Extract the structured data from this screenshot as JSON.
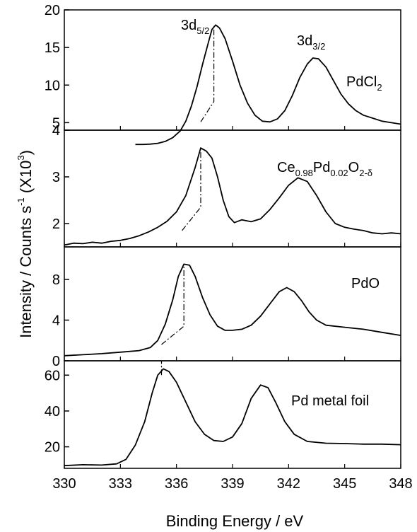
{
  "chart_data": {
    "type": "line",
    "xlabel": "Binding Energy / eV",
    "ylabel": "Intensity / Counts s-1 (X10^3)",
    "ylabel_parts": {
      "main": "Intensity / Counts s",
      "exp1": "-1",
      "paren_open": " (X10",
      "exp2": "3",
      "paren_close": ")"
    },
    "xlim": [
      330,
      348
    ],
    "x_reversed": false,
    "xticks": [
      "330",
      "333",
      "336",
      "339",
      "342",
      "345",
      "348"
    ],
    "peak_labels": {
      "d52": {
        "base": "3d",
        "sub": "5/2"
      },
      "d32": {
        "base": "3d",
        "sub": "3/2"
      }
    },
    "panels": [
      {
        "id": "pdcl2",
        "label_parts": [
          {
            "t": "PdCl",
            "sub": false
          },
          {
            "t": "2",
            "sub": true
          }
        ],
        "ylim": [
          4,
          20
        ],
        "yticks": [
          "4",
          "5",
          "10",
          "15",
          "20"
        ],
        "ytick_values": [
          4,
          5,
          10,
          15,
          20
        ],
        "points": [
          [
            333.8,
            2.1
          ],
          [
            334.2,
            2.1
          ],
          [
            334.6,
            2.15
          ],
          [
            335.0,
            2.25
          ],
          [
            335.4,
            2.5
          ],
          [
            335.8,
            3.0
          ],
          [
            336.2,
            3.9
          ],
          [
            336.5,
            5.2
          ],
          [
            336.8,
            7.2
          ],
          [
            337.1,
            9.8
          ],
          [
            337.4,
            12.8
          ],
          [
            337.7,
            15.6
          ],
          [
            337.9,
            17.4
          ],
          [
            338.1,
            18.0
          ],
          [
            338.3,
            17.6
          ],
          [
            338.6,
            16.2
          ],
          [
            339.0,
            13.2
          ],
          [
            339.4,
            10.0
          ],
          [
            339.8,
            7.6
          ],
          [
            340.2,
            6.0
          ],
          [
            340.6,
            5.2
          ],
          [
            341.0,
            5.1
          ],
          [
            341.4,
            5.5
          ],
          [
            341.8,
            6.6
          ],
          [
            342.2,
            8.6
          ],
          [
            342.6,
            11.0
          ],
          [
            343.0,
            12.8
          ],
          [
            343.3,
            13.6
          ],
          [
            343.6,
            13.5
          ],
          [
            344.0,
            12.4
          ],
          [
            344.4,
            10.6
          ],
          [
            344.8,
            8.8
          ],
          [
            345.2,
            7.5
          ],
          [
            345.6,
            6.6
          ],
          [
            346.0,
            6.0
          ],
          [
            346.5,
            5.6
          ],
          [
            347.0,
            5.2
          ],
          [
            347.5,
            5.0
          ],
          [
            348.0,
            4.8
          ]
        ],
        "dashdot": [
          [
            337.3,
            5.1
          ],
          [
            338.0,
            7.8
          ],
          [
            338.0,
            18.0
          ]
        ]
      },
      {
        "id": "ceo2",
        "label_parts": [
          {
            "t": "Ce",
            "sub": false
          },
          {
            "t": "0.98",
            "sub": true
          },
          {
            "t": "Pd",
            "sub": false
          },
          {
            "t": "0.02",
            "sub": true
          },
          {
            "t": "O",
            "sub": false
          },
          {
            "t": "2-δ",
            "sub": true
          }
        ],
        "ylim": [
          1.5,
          4.0
        ],
        "yticks": [
          "2",
          "3",
          "4"
        ],
        "ytick_values": [
          2,
          3,
          4
        ],
        "points": [
          [
            330.0,
            1.54
          ],
          [
            330.5,
            1.58
          ],
          [
            331.0,
            1.57
          ],
          [
            331.5,
            1.6
          ],
          [
            332.0,
            1.58
          ],
          [
            332.5,
            1.62
          ],
          [
            333.0,
            1.64
          ],
          [
            333.5,
            1.68
          ],
          [
            334.0,
            1.74
          ],
          [
            334.5,
            1.82
          ],
          [
            335.0,
            1.92
          ],
          [
            335.5,
            2.05
          ],
          [
            336.0,
            2.25
          ],
          [
            336.5,
            2.6
          ],
          [
            337.0,
            3.2
          ],
          [
            337.3,
            3.62
          ],
          [
            337.6,
            3.55
          ],
          [
            337.9,
            3.4
          ],
          [
            338.2,
            3.0
          ],
          [
            338.5,
            2.5
          ],
          [
            338.8,
            2.15
          ],
          [
            339.1,
            2.02
          ],
          [
            339.5,
            2.08
          ],
          [
            340.0,
            2.04
          ],
          [
            340.5,
            2.1
          ],
          [
            341.0,
            2.3
          ],
          [
            341.5,
            2.55
          ],
          [
            342.0,
            2.82
          ],
          [
            342.5,
            2.98
          ],
          [
            343.0,
            2.9
          ],
          [
            343.5,
            2.6
          ],
          [
            344.0,
            2.25
          ],
          [
            344.5,
            2.0
          ],
          [
            345.0,
            1.92
          ],
          [
            345.5,
            1.88
          ],
          [
            346.0,
            1.85
          ],
          [
            346.5,
            1.8
          ],
          [
            347.0,
            1.78
          ],
          [
            347.5,
            1.8
          ],
          [
            348.0,
            1.78
          ]
        ],
        "dashdot": [
          [
            336.3,
            1.85
          ],
          [
            337.3,
            2.35
          ],
          [
            337.3,
            3.62
          ]
        ]
      },
      {
        "id": "pdo",
        "label_parts": [
          {
            "t": "PdO",
            "sub": false
          }
        ],
        "ylim": [
          0,
          11.2
        ],
        "yticks": [
          "0",
          "4",
          "8"
        ],
        "ytick_values": [
          0,
          4,
          8
        ],
        "points": [
          [
            330.0,
            0.5
          ],
          [
            331.0,
            0.6
          ],
          [
            332.0,
            0.7
          ],
          [
            333.0,
            0.85
          ],
          [
            334.0,
            1.0
          ],
          [
            334.6,
            1.3
          ],
          [
            335.0,
            2.0
          ],
          [
            335.4,
            3.6
          ],
          [
            335.8,
            6.0
          ],
          [
            336.1,
            8.3
          ],
          [
            336.4,
            9.5
          ],
          [
            336.7,
            9.4
          ],
          [
            337.0,
            8.3
          ],
          [
            337.4,
            6.2
          ],
          [
            337.8,
            4.5
          ],
          [
            338.2,
            3.4
          ],
          [
            338.6,
            3.0
          ],
          [
            339.0,
            3.0
          ],
          [
            339.5,
            3.1
          ],
          [
            340.0,
            3.5
          ],
          [
            340.5,
            4.4
          ],
          [
            341.0,
            5.6
          ],
          [
            341.5,
            6.8
          ],
          [
            341.9,
            7.2
          ],
          [
            342.3,
            6.8
          ],
          [
            342.7,
            5.9
          ],
          [
            343.1,
            4.8
          ],
          [
            343.5,
            4.0
          ],
          [
            344.0,
            3.5
          ],
          [
            345.0,
            3.3
          ],
          [
            346.0,
            3.1
          ],
          [
            347.0,
            2.8
          ],
          [
            348.0,
            2.5
          ]
        ],
        "dashdot": [
          [
            335.2,
            1.6
          ],
          [
            336.4,
            3.4
          ],
          [
            336.4,
            9.5
          ]
        ]
      },
      {
        "id": "pdfoil",
        "label_parts": [
          {
            "t": "Pd metal foil",
            "sub": false
          }
        ],
        "ylim": [
          8,
          68
        ],
        "yticks": [
          "20",
          "40",
          "60"
        ],
        "ytick_values": [
          20,
          40,
          60
        ],
        "points": [
          [
            330.0,
            9.5
          ],
          [
            331.0,
            10.0
          ],
          [
            332.0,
            9.8
          ],
          [
            332.8,
            10.5
          ],
          [
            333.3,
            13.0
          ],
          [
            333.8,
            21.0
          ],
          [
            334.3,
            34.0
          ],
          [
            334.7,
            50.0
          ],
          [
            335.0,
            60.0
          ],
          [
            335.3,
            63.5
          ],
          [
            335.6,
            62.0
          ],
          [
            336.0,
            56.0
          ],
          [
            336.5,
            45.0
          ],
          [
            337.0,
            34.0
          ],
          [
            337.5,
            27.0
          ],
          [
            338.0,
            23.5
          ],
          [
            338.5,
            23.0
          ],
          [
            339.0,
            25.5
          ],
          [
            339.5,
            33.0
          ],
          [
            340.0,
            47.0
          ],
          [
            340.5,
            54.5
          ],
          [
            340.9,
            53.0
          ],
          [
            341.3,
            45.0
          ],
          [
            341.8,
            34.0
          ],
          [
            342.3,
            27.0
          ],
          [
            343.0,
            23.0
          ],
          [
            344.0,
            22.0
          ],
          [
            345.0,
            21.8
          ],
          [
            346.0,
            21.5
          ],
          [
            347.0,
            21.5
          ],
          [
            348.0,
            21.2
          ]
        ],
        "dashdot": [
          [
            335.2,
            60.0
          ],
          [
            335.2,
            68.0
          ]
        ]
      }
    ]
  }
}
